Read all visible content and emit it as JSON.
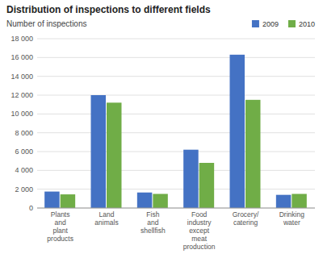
{
  "chart_data": {
    "type": "bar",
    "title": "Distribution of inspections to different fields",
    "subtitle": "Number of inspections",
    "categories": [
      "Plants\nand\nplant\nproducts",
      "Land\nanimals",
      "Fish\nand\nshellfish",
      "Food\nindustry\nexcept\nmeat\nproduction",
      "Grocery/\ncatering",
      "Drinking\nwater"
    ],
    "series": [
      {
        "name": "2009",
        "color": "#4472c4",
        "values": [
          1750,
          12000,
          1650,
          6200,
          16300,
          1400
        ]
      },
      {
        "name": "2010",
        "color": "#70ad47",
        "values": [
          1450,
          11200,
          1500,
          4800,
          11500,
          1500
        ]
      }
    ],
    "ylim": [
      0,
      18000
    ],
    "yticks": [
      0,
      {
        "value": 2000,
        "label": "2 000"
      },
      {
        "value": 4000,
        "label": "4 000"
      },
      {
        "value": 6000,
        "label": "6 000"
      },
      {
        "value": 8000,
        "label": "8 000"
      },
      {
        "value": 10000,
        "label": "10 000"
      },
      {
        "value": 12000,
        "label": "12 000"
      },
      {
        "value": 14000,
        "label": "14 000"
      },
      {
        "value": 16000,
        "label": "16 000"
      },
      {
        "value": 18000,
        "label": "18 000"
      }
    ],
    "grid": true,
    "legend": "upper right"
  }
}
